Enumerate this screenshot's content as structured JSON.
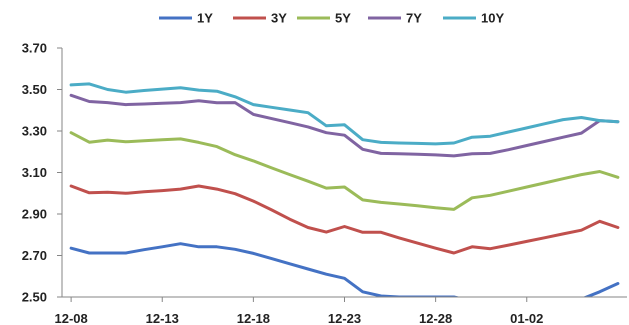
{
  "chart_data": {
    "type": "line",
    "title": "",
    "xlabel": "",
    "ylabel": "",
    "ylim": [
      2.5,
      3.7
    ],
    "yticks": [
      "2.50",
      "2.70",
      "2.90",
      "3.10",
      "3.30",
      "3.50",
      "3.70"
    ],
    "ytick_values": [
      2.5,
      2.7,
      2.9,
      3.1,
      3.3,
      3.5,
      3.7
    ],
    "xticks": [
      "12-08",
      "12-13",
      "12-18",
      "12-23",
      "12-28",
      "01-02"
    ],
    "xtick_index": [
      0,
      5,
      10,
      15,
      20,
      25
    ],
    "x_count": 31,
    "grid": false,
    "legend_position": "top",
    "series": [
      {
        "name": "1Y",
        "color": "#4472C4",
        "values": [
          2.735,
          2.712,
          2.712,
          2.712,
          2.728,
          2.742,
          2.757,
          2.742,
          2.742,
          2.73,
          2.71,
          2.685,
          2.66,
          2.635,
          2.61,
          2.59,
          2.525,
          2.505,
          2.5,
          2.5,
          2.5,
          2.5,
          2.48,
          2.47,
          2.46,
          2.455,
          2.455,
          2.47,
          2.49,
          2.525,
          2.565
        ]
      },
      {
        "name": "3Y",
        "color": "#C0504D",
        "values": [
          3.035,
          3.002,
          3.005,
          3.0,
          3.007,
          3.013,
          3.02,
          3.035,
          3.02,
          2.998,
          2.962,
          2.92,
          2.875,
          2.835,
          2.813,
          2.84,
          2.812,
          2.812,
          2.785,
          2.76,
          2.735,
          2.712,
          2.742,
          2.733,
          2.75,
          2.768,
          2.786,
          2.804,
          2.822,
          2.865,
          2.835
        ]
      },
      {
        "name": "5Y",
        "color": "#9BBB59",
        "values": [
          3.292,
          3.246,
          3.256,
          3.248,
          3.253,
          3.258,
          3.262,
          3.245,
          3.225,
          3.186,
          3.156,
          3.122,
          3.09,
          3.058,
          3.025,
          3.03,
          2.968,
          2.956,
          2.948,
          2.94,
          2.93,
          2.922,
          2.978,
          2.99,
          3.01,
          3.03,
          3.05,
          3.07,
          3.09,
          3.105,
          3.077
        ]
      },
      {
        "name": "7Y",
        "color": "#8064A2",
        "values": [
          3.472,
          3.442,
          3.437,
          3.427,
          3.43,
          3.434,
          3.437,
          3.446,
          3.436,
          3.437,
          3.38,
          3.36,
          3.34,
          3.32,
          3.292,
          3.28,
          3.212,
          3.192,
          3.19,
          3.188,
          3.185,
          3.18,
          3.19,
          3.192,
          3.21,
          3.23,
          3.25,
          3.27,
          3.29,
          3.35,
          3.345
        ]
      },
      {
        "name": "10Y",
        "color": "#4BACC6",
        "values": [
          3.522,
          3.527,
          3.5,
          3.487,
          3.495,
          3.502,
          3.508,
          3.497,
          3.492,
          3.465,
          3.427,
          3.414,
          3.401,
          3.388,
          3.325,
          3.33,
          3.258,
          3.245,
          3.242,
          3.24,
          3.238,
          3.242,
          3.27,
          3.275,
          3.295,
          3.315,
          3.335,
          3.355,
          3.365,
          3.35,
          3.345
        ]
      }
    ]
  }
}
